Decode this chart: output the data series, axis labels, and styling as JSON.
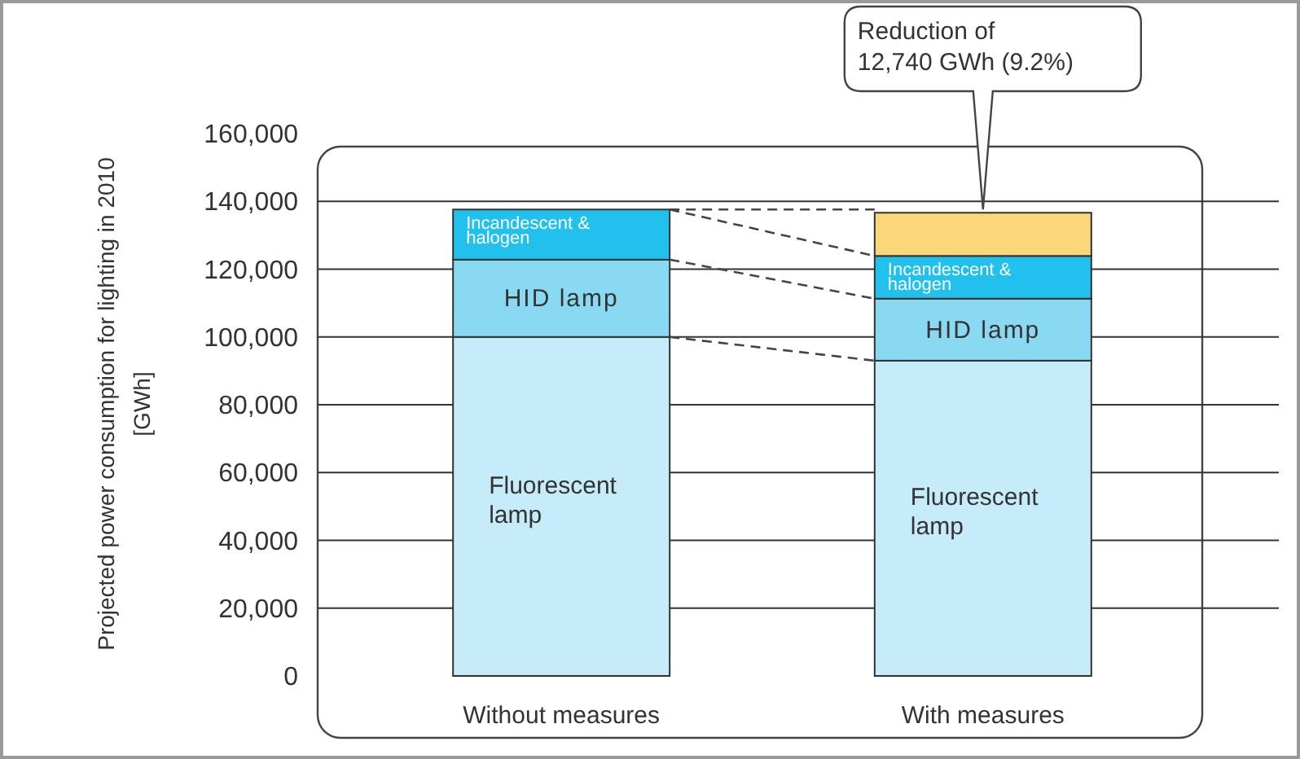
{
  "chart_data": {
    "type": "bar",
    "stacked": true,
    "ylabel": "Projected power consumption for lighting in 2010\n[GWh]",
    "categories": [
      "Without measures",
      "With measures"
    ],
    "series": [
      {
        "name": "Fluorescent\nlamp",
        "color": "#c5ecf8",
        "values": [
          100000,
          93000
        ]
      },
      {
        "name": "HID lamp",
        "color": "#8ad9f3",
        "values": [
          22800,
          18300
        ]
      },
      {
        "name": "Incandescent &\nhalogen",
        "color": "#22c0ec",
        "values": [
          14800,
          12600
        ]
      },
      {
        "color": "#fcd77a",
        "values": [
          null,
          12740
        ]
      }
    ],
    "ylim": [
      0,
      160000
    ],
    "yticks": [
      {
        "value": 0,
        "label": "0"
      },
      {
        "value": 20000,
        "label": "20,000"
      },
      {
        "value": 40000,
        "label": "40,000"
      },
      {
        "value": 60000,
        "label": "60,000"
      },
      {
        "value": 80000,
        "label": "80,000"
      },
      {
        "value": 100000,
        "label": "100,000"
      },
      {
        "value": 120000,
        "label": "120,000"
      },
      {
        "value": 140000,
        "label": "140,000"
      },
      {
        "value": 160000,
        "label": "160,000"
      }
    ],
    "grid": "y",
    "annotations": [
      "Reduction of\n12,740 GWh (9.2%)"
    ]
  }
}
